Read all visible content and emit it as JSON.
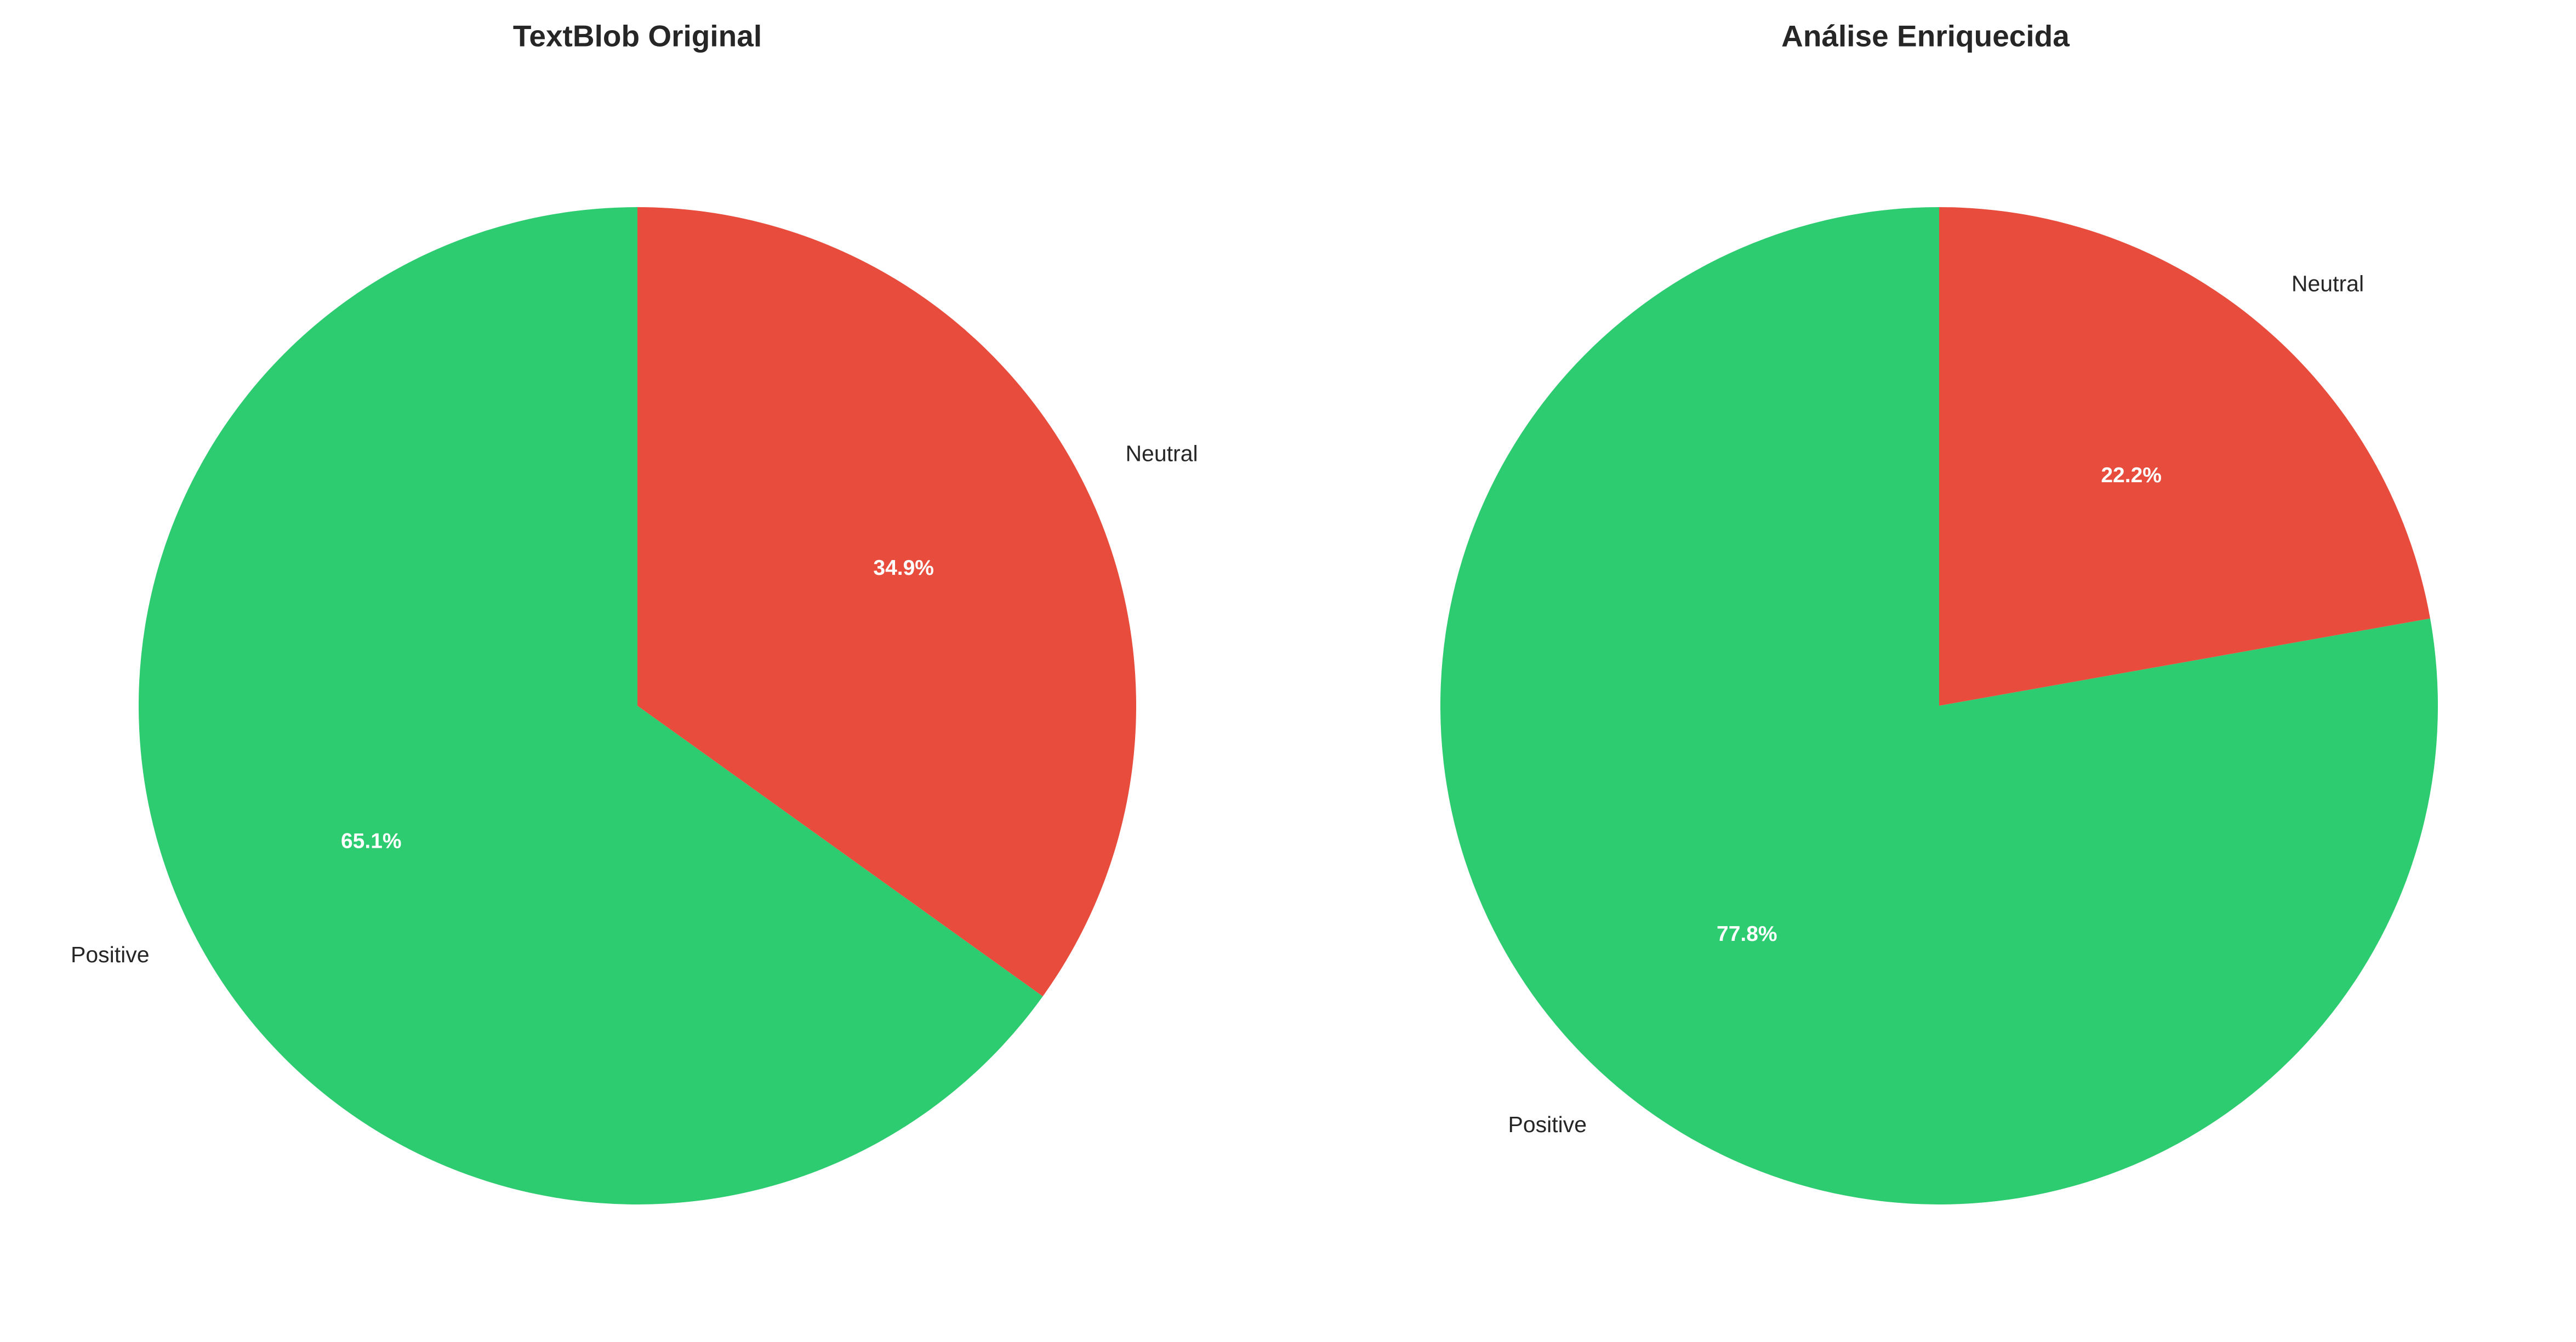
{
  "chart_data": [
    {
      "type": "pie",
      "title": "TextBlob Original",
      "categories": [
        "Neutral",
        "Positive"
      ],
      "values": [
        34.9,
        65.1
      ],
      "value_labels": [
        "34.9%",
        "65.1%"
      ],
      "colors": [
        "#e74c3c",
        "#2ecc71"
      ],
      "start_angle": "top, clockwise"
    },
    {
      "type": "pie",
      "title": "Análise Enriquecida",
      "categories": [
        "Neutral",
        "Positive"
      ],
      "values": [
        22.2,
        77.8
      ],
      "value_labels": [
        "22.2%",
        "77.8%"
      ],
      "colors": [
        "#e74c3c",
        "#2ecc71"
      ],
      "start_angle": "top, clockwise"
    }
  ]
}
